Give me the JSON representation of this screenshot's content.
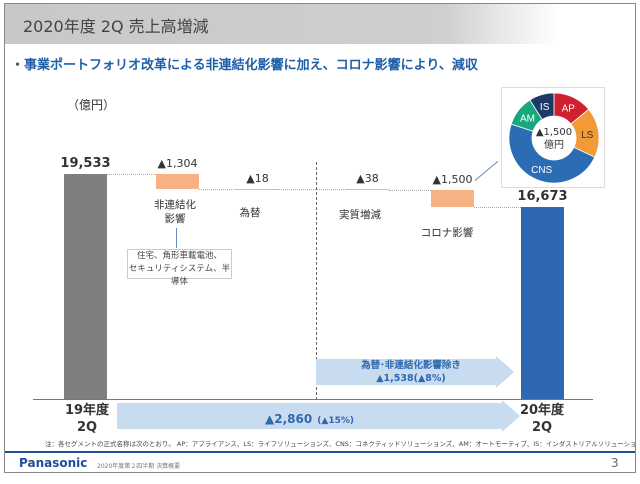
{
  "title": "2020年度 2Q 売上高増減",
  "headline": "事業ポートフォリオ改革による非連結化影響に加え、コロナ影響により、減収",
  "unit": "（億円）",
  "chart_data": {
    "type": "waterfall",
    "categories": [
      "19年度 2Q",
      "非連結化影響",
      "為替",
      "実質増減",
      "コロナ影響",
      "20年度 2Q"
    ],
    "values": [
      19533,
      -1304,
      -18,
      -38,
      -1500,
      16673
    ],
    "value_labels": [
      "19,533",
      "▲1,304",
      "▲18",
      "▲38",
      "▲1,500",
      "16,673"
    ],
    "colors": {
      "start": "#7f7f7f",
      "decrease": "#f8b183",
      "end": "#2e68b0"
    }
  },
  "labels": {
    "start_line1": "19年度",
    "start_line2": "2Q",
    "end_line1": "20年度",
    "end_line2": "2Q",
    "nonconsol": "非連結化\n影響",
    "fx": "為替",
    "real": "実質増減",
    "corona": "コロナ影響"
  },
  "nonconsol_note": {
    "line1": "住宅、角形車載電池、",
    "line2": "セキュリティシステム、半導体"
  },
  "donut": {
    "center1": "▲1,500",
    "center2": "億円",
    "segments": [
      {
        "name": "AP",
        "share": 0.14,
        "color": "#d0202e"
      },
      {
        "name": "LS",
        "share": 0.18,
        "color": "#f29a38"
      },
      {
        "name": "CNS",
        "share": 0.48,
        "color": "#2a6db5"
      },
      {
        "name": "AM",
        "share": 0.11,
        "color": "#17a77f"
      },
      {
        "name": "IS",
        "share": 0.09,
        "color": "#1d3a66"
      }
    ]
  },
  "arrow_mid": {
    "line1": "為替･非連結化影響除き",
    "line2": "▲1,538(▲8%)"
  },
  "arrow_total": {
    "value": "▲2,860",
    "pct": "(▲15%)"
  },
  "footnote": "注：各セグメントの正式名称は次のとおり。 AP：アプライアンス、LS：ライフソリューションズ、CNS：コネクティッドソリューションズ、AM：オートモーティブ、IS：インダストリアルソリューションズ",
  "footer": {
    "brand": "Panasonic",
    "doc": "2020年度第２四半期 決算概要",
    "page": "3"
  }
}
